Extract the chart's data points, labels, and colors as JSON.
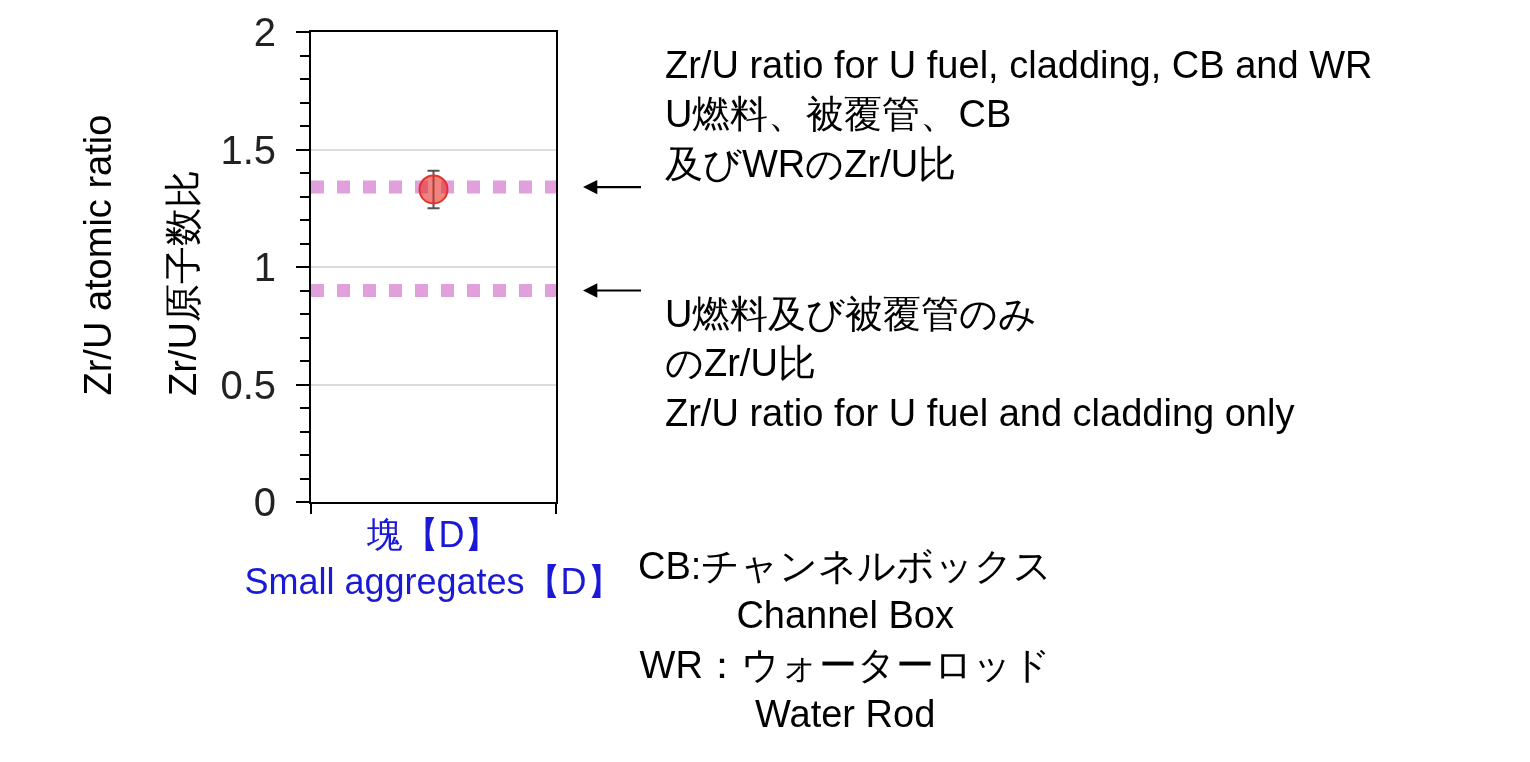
{
  "chart_data": {
    "type": "scatter",
    "ylabel": "Zr/U atomic ratio\nZr/U原子数比",
    "categories": [
      "塊【D】\nSmall aggregates【D】"
    ],
    "values": [
      1.33
    ],
    "errors": [
      0.08
    ],
    "color": "#e8302a",
    "marker": "circle",
    "ylim": [
      0,
      2
    ],
    "yticks": [
      0,
      {
        "value": 0.1,
        "label": null
      },
      {
        "value": 0.2,
        "label": null
      },
      {
        "value": 0.3,
        "label": null
      },
      {
        "value": 0.4,
        "label": null
      },
      0.5,
      {
        "value": 0.6,
        "label": null
      },
      {
        "value": 0.7,
        "label": null
      },
      {
        "value": 0.8,
        "label": null
      },
      {
        "value": 0.9,
        "label": null
      },
      1,
      {
        "value": 1.1,
        "label": null
      },
      {
        "value": 1.2,
        "label": null
      },
      {
        "value": 1.3,
        "label": null
      },
      {
        "value": 1.4,
        "label": null
      },
      1.5,
      {
        "value": 1.6,
        "label": null
      },
      {
        "value": 1.7,
        "label": null
      },
      {
        "value": 1.8,
        "label": null
      },
      {
        "value": 1.9,
        "label": null
      },
      2
    ],
    "grid": "y",
    "ref_lines": [
      {
        "axis": "y",
        "value": 1.34,
        "label": "Zr/U ratio for U fuel, cladding, CB and WR\nU燃料、被覆管、CB及びWRのZr/U比",
        "color": "#e0a0dc",
        "line_style": "dotted"
      },
      {
        "axis": "y",
        "value": 0.9,
        "label": "U燃料及び被覆管のみのZr/U比\nZr/U ratio for U fuel and cladding only",
        "color": "#e0a0dc",
        "line_style": "dotted"
      }
    ],
    "annotations": [
      "CB:チャンネルボックス\nChannel Box\nWR：ウォーターロッド\nWater Rod"
    ]
  }
}
